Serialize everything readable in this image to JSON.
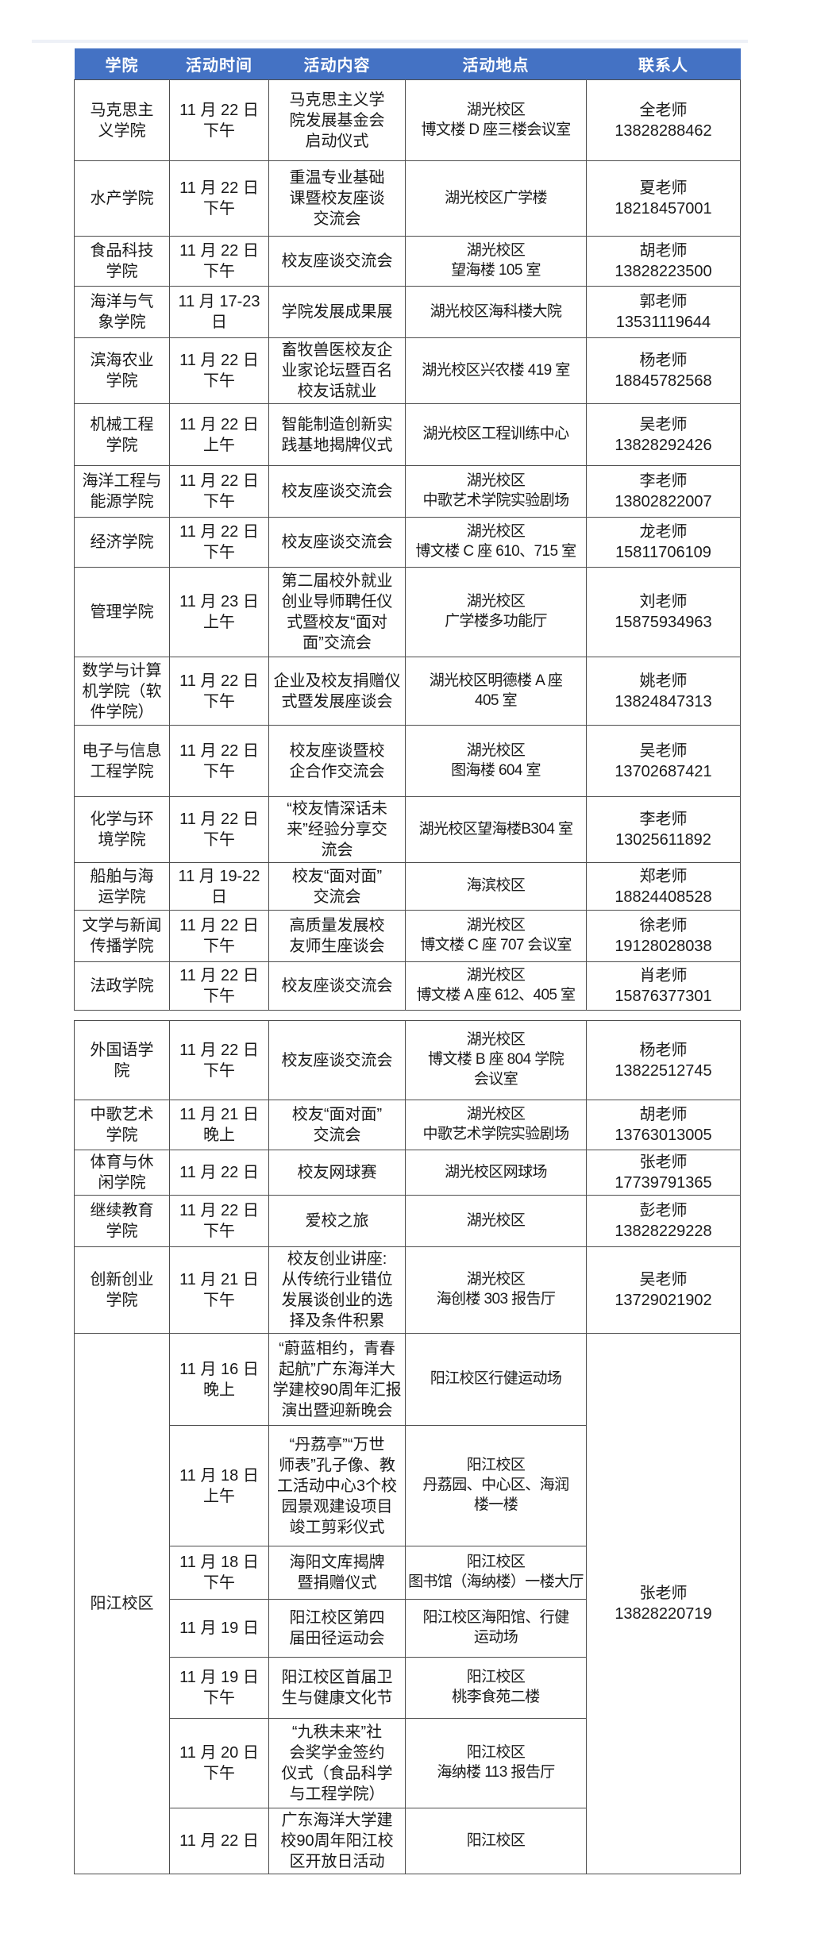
{
  "page": {
    "background": "#ffffff"
  },
  "table": {
    "columns": [
      "学院",
      "活动时间",
      "活动内容",
      "活动地点",
      "联系人"
    ],
    "header_bg": "#4472c4",
    "header_text_color": "#ffffff",
    "border_color": "#4d4d4d"
  },
  "block1_rows": [
    {
      "college": "马克思主\n义学院",
      "time": "11 月 22 日\n下午",
      "content": "马克思主义学\n院发展基金会\n启动仪式",
      "location": "湖光校区\n博文楼 D 座三楼会议室",
      "contact_name": "全老师",
      "contact_phone": "13828288462"
    },
    {
      "college": "水产学院",
      "time": "11 月 22 日\n下午",
      "content": "重温专业基础\n课暨校友座谈\n交流会",
      "location": "湖光校区广学楼",
      "contact_name": "夏老师",
      "contact_phone": "18218457001"
    },
    {
      "college": "食品科技\n学院",
      "time": "11 月 22 日\n下午",
      "content": "校友座谈交流会",
      "location": "湖光校区\n望海楼 105 室",
      "contact_name": "胡老师",
      "contact_phone": "13828223500"
    },
    {
      "college": "海洋与气\n象学院",
      "time": "11 月 17-23\n日",
      "content": "学院发展成果展",
      "location": "湖光校区海科楼大院",
      "contact_name": "郭老师",
      "contact_phone": "13531119644"
    },
    {
      "college": "滨海农业\n学院",
      "time": "11 月 22 日\n下午",
      "content": "畜牧兽医校友企\n业家论坛暨百名\n校友话就业",
      "location": "湖光校区兴农楼 419 室",
      "contact_name": "杨老师",
      "contact_phone": "18845782568"
    },
    {
      "college": "机械工程\n学院",
      "time": "11 月 22 日\n上午",
      "content": "智能制造创新实\n践基地揭牌仪式",
      "location": "湖光校区工程训练中心",
      "contact_name": "吴老师",
      "contact_phone": "13828292426"
    },
    {
      "college": "海洋工程与\n能源学院",
      "time": "11 月 22 日\n下午",
      "content": "校友座谈交流会",
      "location": "湖光校区\n中歌艺术学院实验剧场",
      "contact_name": "李老师",
      "contact_phone": "13802822007"
    },
    {
      "college": "经济学院",
      "time": "11 月 22 日\n下午",
      "content": "校友座谈交流会",
      "location": "湖光校区\n博文楼 C 座 610、715 室",
      "contact_name": "龙老师",
      "contact_phone": "15811706109"
    },
    {
      "college": "管理学院",
      "time": "11 月 23 日\n上午",
      "content": "第二届校外就业\n创业导师聘任仪\n式暨校友“面对\n面”交流会",
      "location": "湖光校区\n广学楼多功能厅",
      "contact_name": "刘老师",
      "contact_phone": "15875934963"
    },
    {
      "college": "数学与计算\n机学院（软\n件学院）",
      "time": "11 月 22 日\n下午",
      "content": "企业及校友捐赠仪\n式暨发展座谈会",
      "location": "湖光校区明德楼 A 座\n405 室",
      "contact_name": "姚老师",
      "contact_phone": "13824847313"
    },
    {
      "college": "电子与信息\n工程学院",
      "time": "11 月 22 日\n下午",
      "content": "校友座谈暨校\n企合作交流会",
      "location": "湖光校区\n图海楼 604 室",
      "contact_name": "吴老师",
      "contact_phone": "13702687421"
    },
    {
      "college": "化学与环\n境学院",
      "time": "11 月 22 日\n下午",
      "content": "“校友情深话未\n来”经验分享交\n流会",
      "location": "湖光校区望海楼B304 室",
      "contact_name": "李老师",
      "contact_phone": "13025611892"
    },
    {
      "college": "船舶与海\n运学院",
      "time": "11 月 19-22\n日",
      "content": "校友“面对面”\n交流会",
      "location": "海滨校区",
      "contact_name": "郑老师",
      "contact_phone": "18824408528"
    },
    {
      "college": "文学与新闻\n传播学院",
      "time": "11 月 22 日\n下午",
      "content": "高质量发展校\n友师生座谈会",
      "location": "湖光校区\n博文楼 C 座 707 会议室",
      "contact_name": "徐老师",
      "contact_phone": "19128028038"
    },
    {
      "college": "法政学院",
      "time": "11 月 22 日\n下午",
      "content": "校友座谈交流会",
      "location": "湖光校区\n博文楼 A 座 612、405 室",
      "contact_name": "肖老师",
      "contact_phone": "15876377301"
    }
  ],
  "block2_rows": [
    {
      "college": "外国语学\n院",
      "time": "11 月 22 日\n下午",
      "content": "校友座谈交流会",
      "location": "湖光校区\n博文楼 B 座 804 学院\n会议室",
      "contact_name": "杨老师",
      "contact_phone": "13822512745"
    },
    {
      "college": "中歌艺术\n学院",
      "time": "11 月 21 日\n晚上",
      "content": "校友“面对面”\n交流会",
      "location": "湖光校区\n中歌艺术学院实验剧场",
      "contact_name": "胡老师",
      "contact_phone": "13763013005"
    },
    {
      "college": "体育与休\n闲学院",
      "time": "11 月 22 日",
      "content": "校友网球赛",
      "location": "湖光校区网球场",
      "contact_name": "张老师",
      "contact_phone": "17739791365"
    },
    {
      "college": "继续教育\n学院",
      "time": "11 月 22 日\n下午",
      "content": "爱校之旅",
      "location": "湖光校区",
      "contact_name": "彭老师",
      "contact_phone": "13828229228"
    },
    {
      "college": "创新创业\n学院",
      "time": "11 月 21 日\n下午",
      "content": "校友创业讲座:\n从传统行业错位\n发展谈创业的选\n择及条件积累",
      "location": "湖光校区\n海创楼 303 报告厅",
      "contact_name": "吴老师",
      "contact_phone": "13729021902"
    }
  ],
  "yangjiang": {
    "college": "阳江校区",
    "contact_name": "张老师",
    "contact_phone": "13828220719",
    "rows": [
      {
        "time": "11 月 16 日\n晚上",
        "content": "“蔚蓝相约，青春\n起航”广东海洋大\n学建校90周年汇报\n演出暨迎新晚会",
        "location": "阳江校区行健运动场"
      },
      {
        "time": "11 月 18 日\n上午",
        "content": "“丹荔亭”“万世\n师表”孔子像、教\n工活动中心3个校\n园景观建设项目\n竣工剪彩仪式",
        "location": "阳江校区\n丹荔园、中心区、海润\n楼一楼"
      },
      {
        "time": "11 月 18 日\n下午",
        "content": "海阳文库揭牌\n暨捐赠仪式",
        "location": "阳江校区\n图书馆（海纳楼）一楼大厅"
      },
      {
        "time": "11 月 19 日",
        "content": "阳江校区第四\n届田径运动会",
        "location": "阳江校区海阳馆、行健\n运动场"
      },
      {
        "time": "11 月 19 日\n下午",
        "content": "阳江校区首届卫\n生与健康文化节",
        "location": "阳江校区\n桃李食苑二楼"
      },
      {
        "time": "11 月 20 日\n下午",
        "content": "“九秩未来”社\n会奖学金签约\n仪式（食品科学\n与工程学院）",
        "location": "阳江校区\n海纳楼 113 报告厅"
      },
      {
        "time": "11 月 22 日",
        "content": "广东海洋大学建\n校90周年阳江校\n区开放日活动",
        "location": "阳江校区"
      }
    ]
  }
}
